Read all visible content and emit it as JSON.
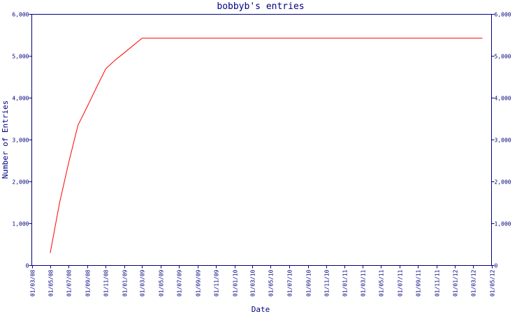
{
  "chart_data": {
    "type": "line",
    "title": "bobbyb's entries",
    "xlabel": "Date",
    "ylabel": "Number of Entries",
    "ylim": [
      0,
      6000
    ],
    "yticks": [
      0,
      1000,
      2000,
      3000,
      4000,
      5000,
      6000
    ],
    "ytick_labels": [
      "0",
      "1,000",
      "2,000",
      "3,000",
      "4,000",
      "5,000",
      "6,000"
    ],
    "xlim": [
      "2008-03-01",
      "2012-05-01"
    ],
    "xticks": [
      "2008-03-01",
      "2008-05-01",
      "2008-07-01",
      "2008-09-01",
      "2008-11-01",
      "2009-01-01",
      "2009-03-01",
      "2009-05-01",
      "2009-07-01",
      "2009-09-01",
      "2009-11-01",
      "2010-01-01",
      "2010-03-01",
      "2010-05-01",
      "2010-07-01",
      "2010-09-01",
      "2010-11-01",
      "2011-01-01",
      "2011-03-01",
      "2011-05-01",
      "2011-07-01",
      "2011-09-01",
      "2011-11-01",
      "2012-01-01",
      "2012-03-01",
      "2012-05-01"
    ],
    "xtick_labels": [
      "01/03/08",
      "01/05/08",
      "01/07/08",
      "01/09/08",
      "01/11/08",
      "01/01/09",
      "01/03/09",
      "01/05/09",
      "01/07/09",
      "01/09/09",
      "01/11/09",
      "01/01/10",
      "01/03/10",
      "01/05/10",
      "01/07/10",
      "01/09/10",
      "01/11/10",
      "01/01/11",
      "01/03/11",
      "01/05/11",
      "01/07/11",
      "01/09/11",
      "01/11/11",
      "01/01/12",
      "01/03/12",
      "01/05/12"
    ],
    "grid": false,
    "line_color": "#ff0000",
    "axis_color": "#000080",
    "series": [
      {
        "x": [
          "2008-05-01",
          "2008-06-01",
          "2008-07-01",
          "2008-08-01",
          "2008-09-01",
          "2008-10-01",
          "2008-11-01",
          "2008-12-01",
          "2009-01-01",
          "2009-03-01",
          "2012-04-01"
        ],
        "values": [
          300,
          1500,
          2450,
          3350,
          3800,
          4250,
          4700,
          4900,
          5080,
          5430,
          5430
        ]
      }
    ]
  }
}
